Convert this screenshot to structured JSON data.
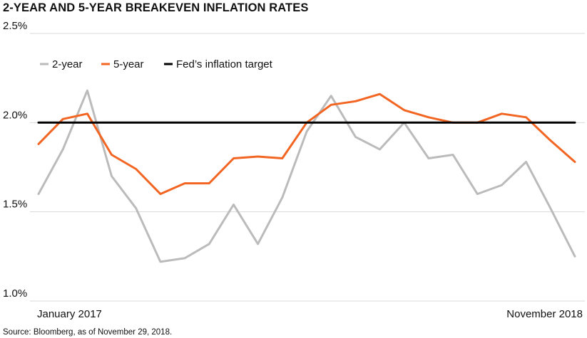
{
  "chart_data": {
    "type": "line",
    "title": "2-YEAR AND 5-YEAR BREAKEVEN INFLATION RATES",
    "source": "Source: Bloomberg, as of November 29, 2018.",
    "x_labels": [
      "January 2017",
      "November 2018"
    ],
    "y_ticks": [
      "2.5%",
      "2.0%",
      "1.5%",
      "1.0%"
    ],
    "ylim": [
      1.0,
      2.5
    ],
    "grid": "horizontal",
    "legend_position": "top-left",
    "x": [
      "2017-01",
      "2017-02",
      "2017-03",
      "2017-04",
      "2017-05",
      "2017-06",
      "2017-07",
      "2017-08",
      "2017-09",
      "2017-10",
      "2017-11",
      "2017-12",
      "2018-01",
      "2018-02",
      "2018-03",
      "2018-04",
      "2018-05",
      "2018-06",
      "2018-07",
      "2018-08",
      "2018-09",
      "2018-10",
      "2018-11"
    ],
    "series": [
      {
        "name": "2-year",
        "color": "#bbbbbb",
        "values": [
          1.6,
          1.85,
          2.18,
          1.7,
          1.52,
          1.22,
          1.24,
          1.32,
          1.54,
          1.32,
          1.58,
          1.95,
          2.15,
          1.92,
          1.85,
          2.0,
          1.8,
          1.82,
          1.6,
          1.65,
          1.78,
          1.52,
          1.25
        ]
      },
      {
        "name": "5-year",
        "color": "#f26522",
        "values": [
          1.88,
          2.02,
          2.05,
          1.82,
          1.74,
          1.6,
          1.66,
          1.66,
          1.8,
          1.81,
          1.8,
          2.0,
          2.1,
          2.12,
          2.16,
          2.07,
          2.03,
          2.0,
          2.0,
          2.05,
          2.03,
          1.9,
          1.78
        ]
      },
      {
        "name": "Fed’s inflation target",
        "color": "#000000",
        "values": [
          2.0,
          2.0,
          2.0,
          2.0,
          2.0,
          2.0,
          2.0,
          2.0,
          2.0,
          2.0,
          2.0,
          2.0,
          2.0,
          2.0,
          2.0,
          2.0,
          2.0,
          2.0,
          2.0,
          2.0,
          2.0,
          2.0,
          2.0
        ]
      }
    ]
  }
}
